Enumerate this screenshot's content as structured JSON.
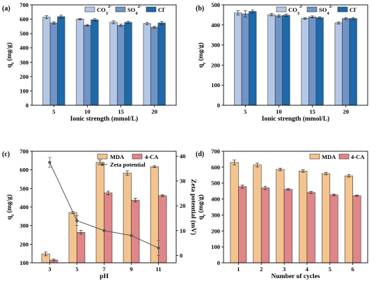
{
  "panels": [
    {
      "label": "(a)",
      "chart_data": {
        "type": "bar",
        "title": "",
        "xlabel": "Ionic strength (mmol/L)",
        "ylabel": "q",
        "ylabel_sub": "t",
        "ylabel_unit": " (mg/g)",
        "ylim": [
          0,
          700
        ],
        "yticks": [
          0,
          100,
          200,
          300,
          400,
          500,
          600,
          700
        ],
        "categories": [
          "5",
          "10",
          "15",
          "20"
        ],
        "legend_position": "top-right",
        "series": [
          {
            "name": "CO",
            "name_sub": "3",
            "name_sup": "2-",
            "color": "#b4c7e7",
            "values": [
              614,
              601,
              579,
              570
            ],
            "errors": [
              10,
              5,
              10,
              8
            ]
          },
          {
            "name": "SO",
            "name_sub": "4",
            "name_sup": "2-",
            "color": "#6f94c7",
            "values": [
              574,
              558,
              558,
              544
            ],
            "errors": [
              8,
              6,
              8,
              6
            ]
          },
          {
            "name": "Cl",
            "name_sub": "",
            "name_sup": "-",
            "color": "#1c69ab",
            "values": [
              618,
              596,
              578,
              574
            ],
            "errors": [
              10,
              8,
              8,
              10
            ]
          }
        ]
      }
    },
    {
      "label": "(b)",
      "chart_data": {
        "type": "bar",
        "title": "",
        "xlabel": "Ionic strength (mmol/L)",
        "ylabel": "q",
        "ylabel_sub": "t",
        "ylabel_unit": " (mg/g)",
        "ylim": [
          0,
          500
        ],
        "yticks": [
          0,
          100,
          200,
          300,
          400,
          500
        ],
        "categories": [
          "5",
          "10",
          "15",
          "20"
        ],
        "legend_position": "top-right",
        "series": [
          {
            "name": "CO",
            "name_sub": "3",
            "name_sup": "2-",
            "color": "#b4c7e7",
            "values": [
              460,
              451,
              432,
              410
            ],
            "errors": [
              10,
              6,
              4,
              5
            ]
          },
          {
            "name": "SO",
            "name_sub": "4",
            "name_sup": "2-",
            "color": "#6f94c7",
            "values": [
              455,
              445,
              440,
              432
            ],
            "errors": [
              15,
              6,
              5,
              5
            ]
          },
          {
            "name": "Cl",
            "name_sub": "",
            "name_sup": "-",
            "color": "#1c69ab",
            "values": [
              467,
              448,
              436,
              432
            ],
            "errors": [
              8,
              6,
              5,
              5
            ]
          }
        ]
      }
    },
    {
      "label": "(c)",
      "chart_data": {
        "type": "bar",
        "title": "",
        "xlabel": "pH",
        "ylabel": "q",
        "ylabel_sub": "t",
        "ylabel_unit": " (mg/g)",
        "ylim": [
          100,
          700
        ],
        "yticks": [
          100,
          200,
          300,
          400,
          500,
          600,
          700
        ],
        "categories": [
          "3",
          "5",
          "7",
          "9",
          "11"
        ],
        "legend_position": "top-right",
        "series": [
          {
            "name": "MDA",
            "name_sub": "",
            "name_sup": "",
            "color": "#f3c48f",
            "values": [
              148,
              370,
              641,
              583,
              617
            ],
            "errors": [
              10,
              5,
              12,
              12,
              5
            ]
          },
          {
            "name": "4-CA",
            "name_sub": "",
            "name_sup": "",
            "color": "#e08689",
            "values": [
              115,
              264,
              476,
              437,
              461
            ],
            "errors": [
              5,
              10,
              10,
              10,
              5
            ]
          }
        ],
        "secondary": {
          "type": "line",
          "name": "Zeta potential",
          "color": "#555555",
          "ylabel": "Zeta potential (mV)",
          "ylim": [
            -3,
            42
          ],
          "yticks": [
            0,
            10,
            20,
            30,
            40
          ],
          "values": [
            37.5,
            14,
            10,
            8,
            3
          ],
          "errors": [
            2,
            2,
            0,
            0,
            3
          ]
        }
      }
    },
    {
      "label": "(d)",
      "chart_data": {
        "type": "bar",
        "title": "",
        "xlabel": "Number of cycles",
        "ylabel": "q",
        "ylabel_sub": "t",
        "ylabel_unit": " (mg/g)",
        "ylim": [
          0,
          700
        ],
        "yticks": [
          0,
          100,
          200,
          300,
          400,
          500,
          600,
          700
        ],
        "categories": [
          "1",
          "2",
          "3",
          "4",
          "5",
          "6"
        ],
        "legend_position": "top-right",
        "series": [
          {
            "name": "MDA",
            "name_sub": "",
            "name_sup": "",
            "color": "#f3c48f",
            "values": [
              630,
              614,
              586,
              576,
              560,
              546
            ],
            "errors": [
              15,
              12,
              8,
              8,
              8,
              8
            ]
          },
          {
            "name": "4-CA",
            "name_sub": "",
            "name_sup": "",
            "color": "#e08689",
            "values": [
              478,
              470,
              461,
              442,
              426,
              421
            ],
            "errors": [
              10,
              10,
              6,
              6,
              6,
              4
            ]
          }
        ]
      }
    }
  ]
}
